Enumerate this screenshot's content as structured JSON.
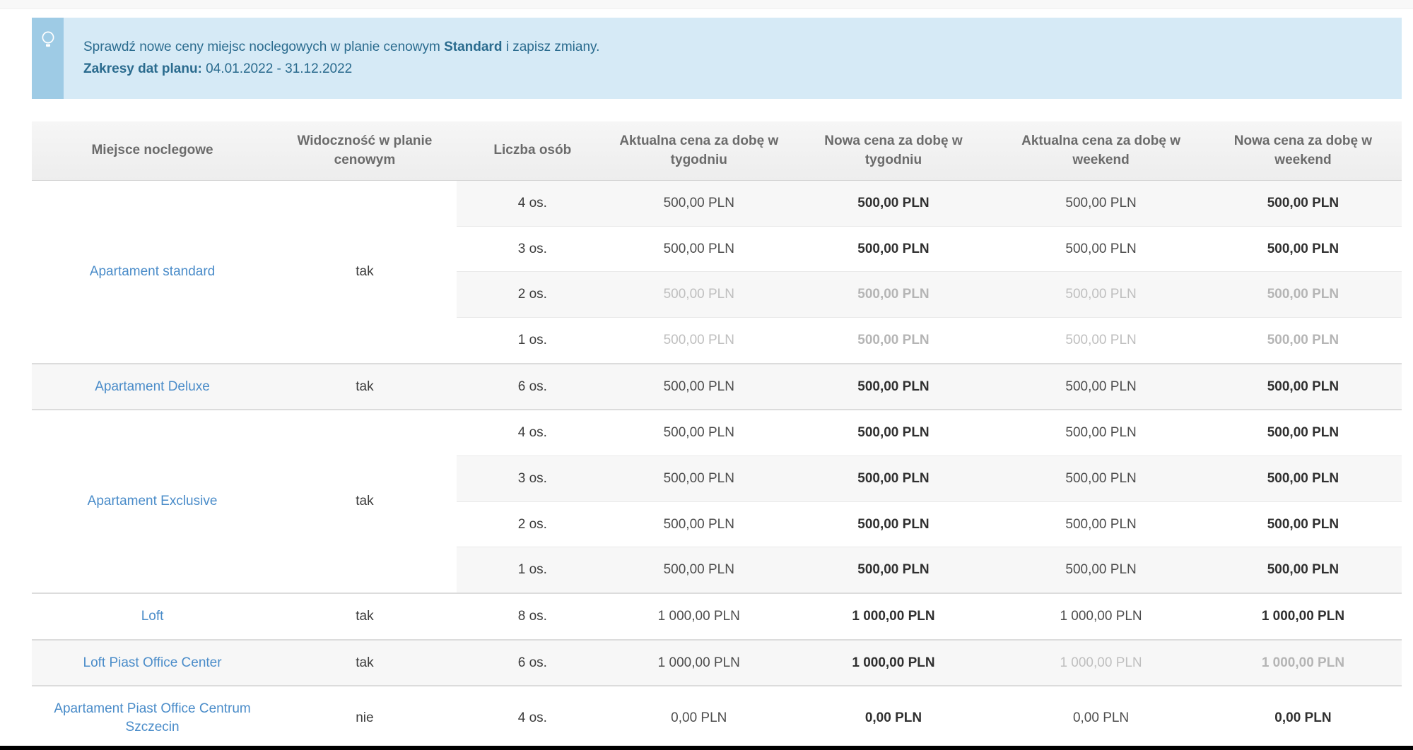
{
  "banner": {
    "icon": "lightbulb-icon",
    "line1_prefix": "Sprawdź nowe ceny miejsc noclegowych w planie cenowym ",
    "plan_name": "Standard",
    "line1_suffix": " i zapisz zmiany.",
    "line2_label": "Zakresy dat planu:",
    "line2_value": " 04.01.2022 - 31.12.2022"
  },
  "table": {
    "columns": [
      "Miejsce noclegowe",
      "Widoczność w planie cenowym",
      "Liczba osób",
      "Aktualna cena za dobę w tygodniu",
      "Nowa cena za dobę w tygodniu",
      "Aktualna cena za dobę w weekend",
      "Nowa cena za dobę w weekend"
    ],
    "groups": [
      {
        "name": "Apartament standard",
        "visibility": "tak",
        "rows": [
          {
            "persons": "4 os.",
            "current_week": "500,00 PLN",
            "new_week": "500,00 PLN",
            "current_weekend": "500,00 PLN",
            "new_weekend": "500,00 PLN",
            "muted_week": false,
            "muted_weekend": false
          },
          {
            "persons": "3 os.",
            "current_week": "500,00 PLN",
            "new_week": "500,00 PLN",
            "current_weekend": "500,00 PLN",
            "new_weekend": "500,00 PLN",
            "muted_week": false,
            "muted_weekend": false
          },
          {
            "persons": "2 os.",
            "current_week": "500,00 PLN",
            "new_week": "500,00 PLN",
            "current_weekend": "500,00 PLN",
            "new_weekend": "500,00 PLN",
            "muted_week": true,
            "muted_weekend": true
          },
          {
            "persons": "1 os.",
            "current_week": "500,00 PLN",
            "new_week": "500,00 PLN",
            "current_weekend": "500,00 PLN",
            "new_weekend": "500,00 PLN",
            "muted_week": true,
            "muted_weekend": true
          }
        ]
      },
      {
        "name": "Apartament Deluxe",
        "visibility": "tak",
        "rows": [
          {
            "persons": "6 os.",
            "current_week": "500,00 PLN",
            "new_week": "500,00 PLN",
            "current_weekend": "500,00 PLN",
            "new_weekend": "500,00 PLN",
            "muted_week": false,
            "muted_weekend": false
          }
        ]
      },
      {
        "name": "Apartament Exclusive",
        "visibility": "tak",
        "rows": [
          {
            "persons": "4 os.",
            "current_week": "500,00 PLN",
            "new_week": "500,00 PLN",
            "current_weekend": "500,00 PLN",
            "new_weekend": "500,00 PLN",
            "muted_week": false,
            "muted_weekend": false
          },
          {
            "persons": "3 os.",
            "current_week": "500,00 PLN",
            "new_week": "500,00 PLN",
            "current_weekend": "500,00 PLN",
            "new_weekend": "500,00 PLN",
            "muted_week": false,
            "muted_weekend": false
          },
          {
            "persons": "2 os.",
            "current_week": "500,00 PLN",
            "new_week": "500,00 PLN",
            "current_weekend": "500,00 PLN",
            "new_weekend": "500,00 PLN",
            "muted_week": false,
            "muted_weekend": false
          },
          {
            "persons": "1 os.",
            "current_week": "500,00 PLN",
            "new_week": "500,00 PLN",
            "current_weekend": "500,00 PLN",
            "new_weekend": "500,00 PLN",
            "muted_week": false,
            "muted_weekend": false
          }
        ]
      },
      {
        "name": "Loft",
        "visibility": "tak",
        "rows": [
          {
            "persons": "8 os.",
            "current_week": "1 000,00 PLN",
            "new_week": "1 000,00 PLN",
            "current_weekend": "1 000,00 PLN",
            "new_weekend": "1 000,00 PLN",
            "muted_week": false,
            "muted_weekend": false
          }
        ]
      },
      {
        "name": "Loft Piast Office Center",
        "visibility": "tak",
        "rows": [
          {
            "persons": "6 os.",
            "current_week": "1 000,00 PLN",
            "new_week": "1 000,00 PLN",
            "current_weekend": "1 000,00 PLN",
            "new_weekend": "1 000,00 PLN",
            "muted_week": false,
            "muted_weekend": true
          }
        ]
      },
      {
        "name": "Apartament Piast Office Centrum Szczecin",
        "visibility": "nie",
        "rows": [
          {
            "persons": "4 os.",
            "current_week": "0,00 PLN",
            "new_week": "0,00 PLN",
            "current_weekend": "0,00 PLN",
            "new_weekend": "0,00 PLN",
            "muted_week": false,
            "muted_weekend": false
          }
        ]
      }
    ]
  },
  "colors": {
    "banner_bg": "#d6eaf6",
    "banner_strip": "#9ecbe5",
    "banner_text": "#2a6b8e",
    "link": "#4a8cc9",
    "stripe": "#f7f7f7",
    "muted_text": "#bfbfbf"
  }
}
